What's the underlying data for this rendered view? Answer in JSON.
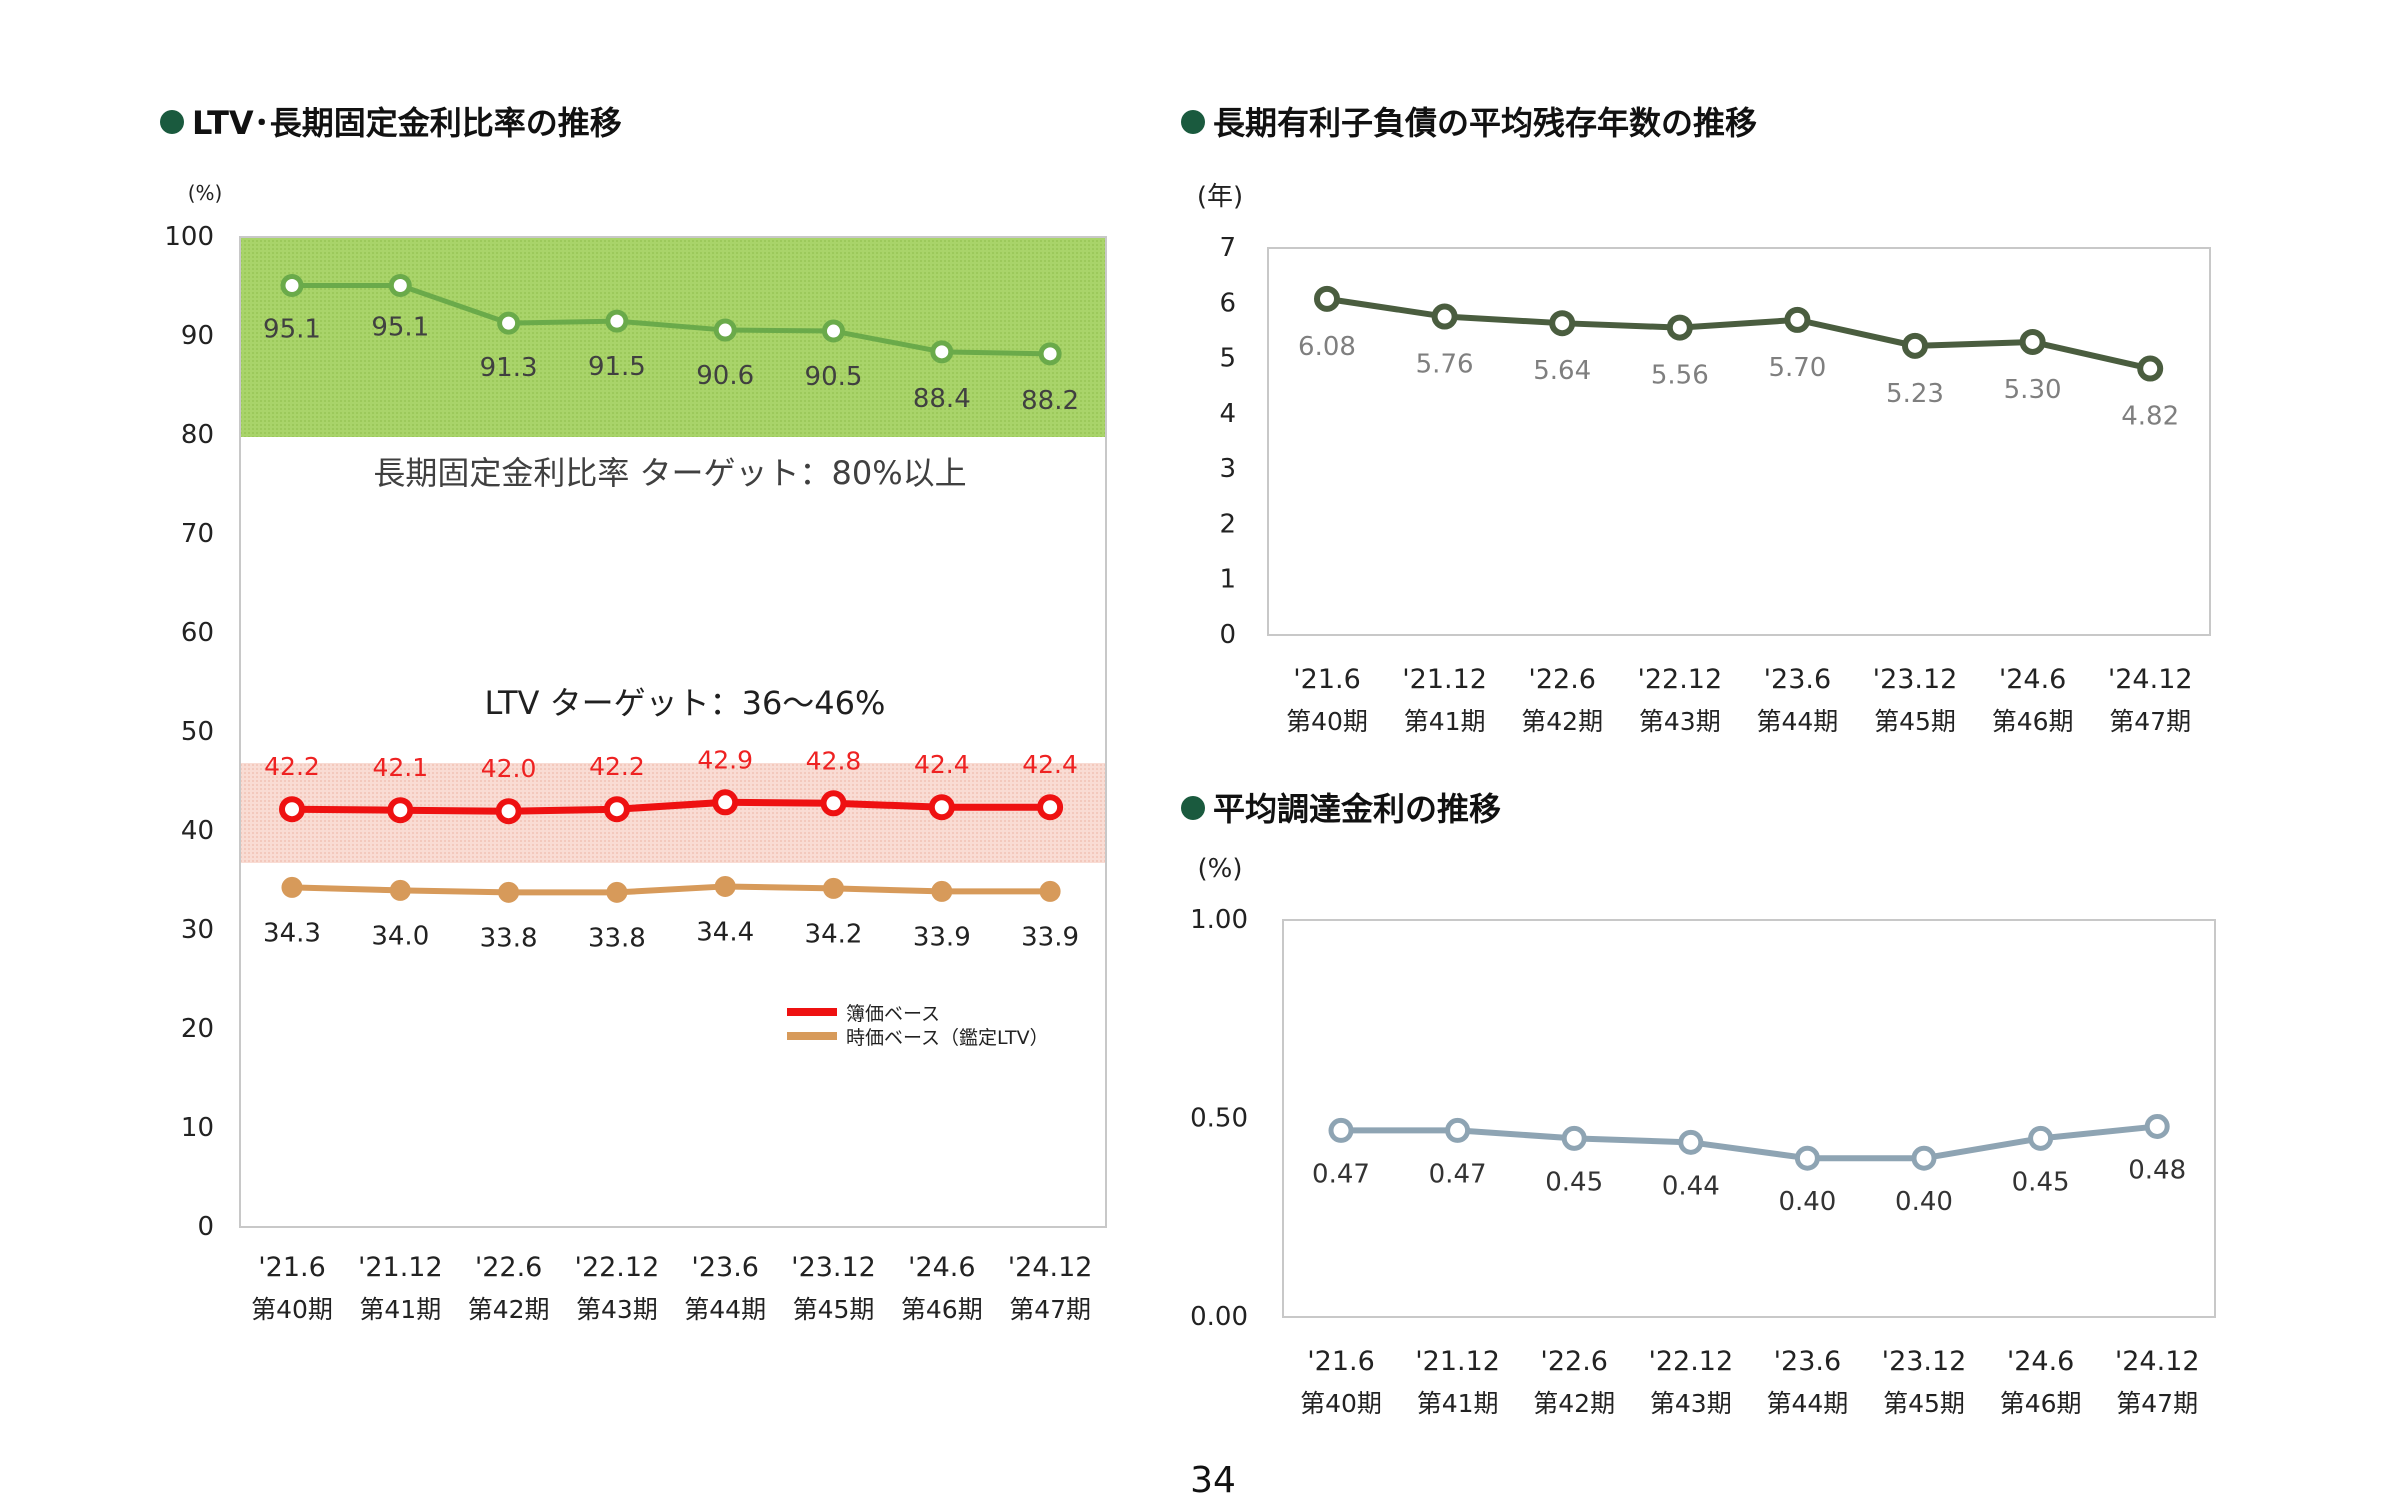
{
  "page_number": "34",
  "colors": {
    "fixed": "#6aaa4a",
    "book": "#ee1111",
    "appraisal": "#d79a5a",
    "maturity": "#4a5d3f",
    "rate": "#8ea4b3",
    "bullet": "#1a5a3e",
    "label_gray": "#7f7f7f",
    "label_red": "#ee2222",
    "band_green": "#a9d46a",
    "band_pink": "#f8d8d0"
  },
  "categories": [
    "'21.6",
    "'21.12",
    "'22.6",
    "'22.12",
    "'23.6",
    "'23.12",
    "'24.6",
    "'24.12"
  ],
  "periods": [
    "第40期",
    "第41期",
    "第42期",
    "第43期",
    "第44期",
    "第45期",
    "第46期",
    "第47期"
  ],
  "chart_data": [
    {
      "type": "line",
      "title": "LTV･長期固定金利比率の推移",
      "ylabel": "(%)",
      "ylim": [
        0,
        100
      ],
      "yticks": [
        "0",
        "10",
        "20",
        "30",
        "40",
        "50",
        "60",
        "70",
        "80",
        "90",
        "100"
      ],
      "grid": false,
      "legend_position": "lower-right",
      "target_bands": [
        {
          "range": [
            80,
            100
          ],
          "label": "長期固定金利比率  ターゲット：80%以上"
        },
        {
          "range": [
            36.5,
            46.5
          ],
          "label": "LTV  ターゲット：36～46%"
        }
      ],
      "series": [
        {
          "key": "fixed",
          "values": [
            95.1,
            95.1,
            91.3,
            91.5,
            90.6,
            90.5,
            88.4,
            88.2
          ],
          "labels": [
            "95.1",
            "95.1",
            "91.3",
            "91.5",
            "90.6",
            "90.5",
            "88.4",
            "88.2"
          ]
        },
        {
          "key": "book",
          "name": "簿価ベース",
          "values": [
            42.2,
            42.1,
            42.0,
            42.2,
            42.9,
            42.8,
            42.4,
            42.4
          ],
          "labels": [
            "42.2",
            "42.1",
            "42.0",
            "42.2",
            "42.9",
            "42.8",
            "42.4",
            "42.4"
          ]
        },
        {
          "key": "appraisal",
          "name": "時価ベース（鑑定LTV）",
          "values": [
            34.3,
            34.0,
            33.8,
            33.8,
            34.4,
            34.2,
            33.9,
            33.9
          ],
          "labels": [
            "34.3",
            "34.0",
            "33.8",
            "33.8",
            "34.4",
            "34.2",
            "33.9",
            "33.9"
          ]
        }
      ]
    },
    {
      "type": "line",
      "title": "長期有利子負債の平均残存年数の推移",
      "ylabel": "(年)",
      "ylim": [
        0,
        7
      ],
      "yticks": [
        "0",
        "1",
        "2",
        "3",
        "4",
        "5",
        "6",
        "7"
      ],
      "grid": false,
      "series": [
        {
          "key": "maturity",
          "values": [
            6.08,
            5.76,
            5.64,
            5.56,
            5.7,
            5.23,
            5.3,
            4.82
          ],
          "labels": [
            "6.08",
            "5.76",
            "5.64",
            "5.56",
            "5.70",
            "5.23",
            "5.30",
            "4.82"
          ]
        }
      ]
    },
    {
      "type": "line",
      "title": "平均調達金利の推移",
      "ylabel": "(%)",
      "ylim": [
        0,
        1
      ],
      "yticks": [
        "0.00",
        "0.50",
        "1.00"
      ],
      "grid": false,
      "series": [
        {
          "key": "rate",
          "values": [
            0.47,
            0.47,
            0.45,
            0.44,
            0.4,
            0.4,
            0.45,
            0.48
          ],
          "labels": [
            "0.47",
            "0.47",
            "0.45",
            "0.44",
            "0.40",
            "0.40",
            "0.45",
            "0.48"
          ]
        }
      ]
    }
  ]
}
